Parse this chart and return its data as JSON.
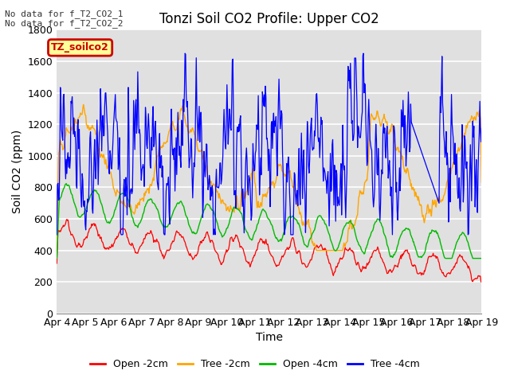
{
  "title": "Tonzi Soil CO2 Profile: Upper CO2",
  "xlabel": "Time",
  "ylabel": "Soil CO2 (ppm)",
  "ylim": [
    0,
    1800
  ],
  "yticks": [
    0,
    200,
    400,
    600,
    800,
    1000,
    1200,
    1400,
    1600,
    1800
  ],
  "x_labels": [
    "Apr 4",
    "Apr 5",
    "Apr 6",
    "Apr 7",
    "Apr 8",
    "Apr 9",
    "Apr 10",
    "Apr 11",
    "Apr 12",
    "Apr 13",
    "Apr 14",
    "Apr 15",
    "Apr 16",
    "Apr 17",
    "Apr 18",
    "Apr 19"
  ],
  "annotation_text": "No data for f_T2_CO2_1\nNo data for f_T2_CO2_2",
  "legend_label": "TZ_soilco2",
  "legend_entries": [
    "Open -2cm",
    "Tree -2cm",
    "Open -4cm",
    "Tree -4cm"
  ],
  "legend_colors": [
    "#ff0000",
    "#ffa500",
    "#00bb00",
    "#0000ff"
  ],
  "background_color": "#ffffff",
  "plot_bg_color": "#e0e0e0",
  "grid_color": "#ffffff",
  "title_fontsize": 12,
  "label_fontsize": 10,
  "tick_fontsize": 9
}
